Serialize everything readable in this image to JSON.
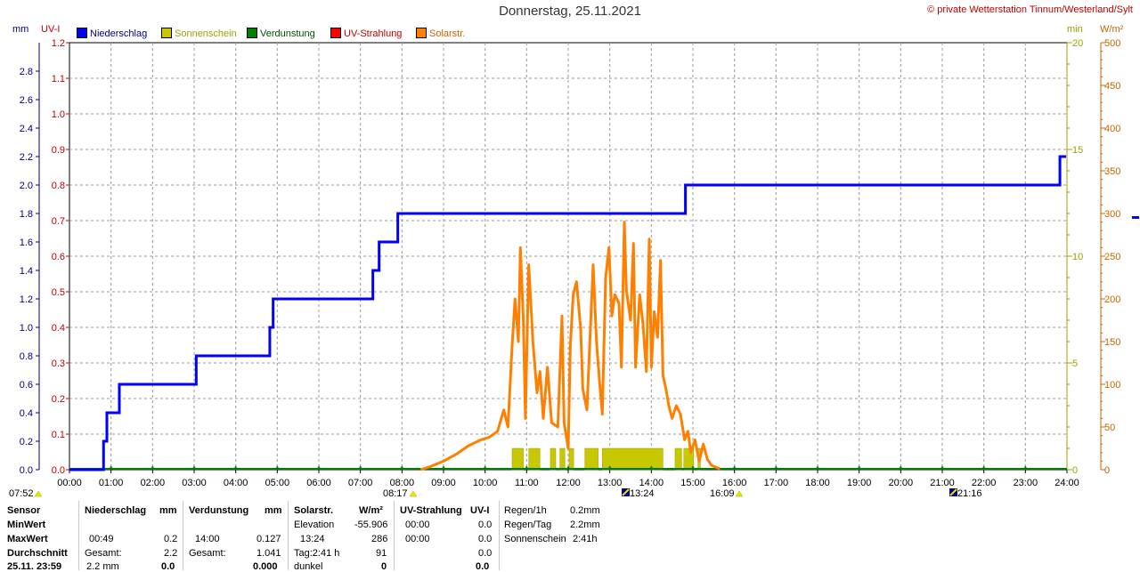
{
  "header": {
    "title": "Donnerstag, 25.11.2021",
    "copyright": "© private Wetterstation Tinnum/Westerland/Sylt"
  },
  "units": {
    "mm": "mm",
    "uvi": "UV-I",
    "min": "min",
    "wm2": "W/m²"
  },
  "colors": {
    "precip": "#0000ff",
    "sun": "#c8c800",
    "evap": "#008000",
    "uv": "#ff0000",
    "solar": "#ff8000",
    "axis_left1": "#000080",
    "axis_left2": "#c00000",
    "axis_min": "#a0a000",
    "axis_wm2": "#c86400"
  },
  "legend": [
    {
      "label": "Niederschlag",
      "color": "#0000ff",
      "text_color": "#000080"
    },
    {
      "label": "Sonnenschein",
      "color": "#c8c800",
      "text_color": "#a0a000"
    },
    {
      "label": "Verdunstung",
      "color": "#008000",
      "text_color": "#005000"
    },
    {
      "label": "UV-Strahlung",
      "color": "#ff0000",
      "text_color": "#c00000"
    },
    {
      "label": "Solarstr.",
      "color": "#ff8000",
      "text_color": "#c86400"
    }
  ],
  "chart_data": {
    "type": "line",
    "title": "Donnerstag, 25.11.2021",
    "x_ticks": [
      "00:00",
      "01:00",
      "02:00",
      "03:00",
      "04:00",
      "05:00",
      "06:00",
      "07:00",
      "08:00",
      "09:00",
      "10:00",
      "11:00",
      "12:00",
      "13:00",
      "14:00",
      "15:00",
      "16:00",
      "17:00",
      "18:00",
      "19:00",
      "20:00",
      "21:00",
      "22:00",
      "23:00",
      "24:00"
    ],
    "grid": true,
    "axes": {
      "mm": {
        "min": 0,
        "max": 3.0,
        "ticks": [
          "0.0",
          "0.2",
          "0.4",
          "0.6",
          "0.8",
          "1.0",
          "1.2",
          "1.4",
          "1.6",
          "1.8",
          "2.0",
          "2.2",
          "2.4",
          "2.6",
          "2.8"
        ]
      },
      "uvi": {
        "min": 0,
        "max": 1.2,
        "ticks": [
          "0.0",
          "0.1",
          "0.2",
          "0.3",
          "0.4",
          "0.5",
          "0.6",
          "0.7",
          "0.8",
          "0.9",
          "1.0",
          "1.1",
          "1.2"
        ]
      },
      "min": {
        "min": 0,
        "max": 20,
        "ticks": [
          "0",
          "5",
          "10",
          "15",
          "20"
        ]
      },
      "wm2": {
        "min": 0,
        "max": 500,
        "ticks": [
          "0",
          "50",
          "100",
          "150",
          "200",
          "250",
          "300",
          "350",
          "400",
          "450",
          "500"
        ]
      }
    },
    "series": [
      {
        "name": "Niederschlag",
        "axis": "mm",
        "step": true,
        "points": [
          [
            0.0,
            0.0
          ],
          [
            0.78,
            0.0
          ],
          [
            0.82,
            0.2
          ],
          [
            0.9,
            0.4
          ],
          [
            1.2,
            0.6
          ],
          [
            3.05,
            0.8
          ],
          [
            4.82,
            1.0
          ],
          [
            4.9,
            1.2
          ],
          [
            7.3,
            1.4
          ],
          [
            7.45,
            1.6
          ],
          [
            7.9,
            1.8
          ],
          [
            14.82,
            2.0
          ],
          [
            23.83,
            2.2
          ],
          [
            23.98,
            2.2
          ]
        ]
      },
      {
        "name": "Solarstr.",
        "axis": "wm2",
        "points": [
          [
            8.45,
            0
          ],
          [
            8.7,
            4
          ],
          [
            9.0,
            10
          ],
          [
            9.3,
            18
          ],
          [
            9.6,
            28
          ],
          [
            9.9,
            35
          ],
          [
            10.1,
            38
          ],
          [
            10.3,
            45
          ],
          [
            10.45,
            70
          ],
          [
            10.55,
            50
          ],
          [
            10.65,
            145
          ],
          [
            10.72,
            200
          ],
          [
            10.8,
            150
          ],
          [
            10.85,
            260
          ],
          [
            10.92,
            175
          ],
          [
            10.97,
            60
          ],
          [
            11.05,
            240
          ],
          [
            11.15,
            150
          ],
          [
            11.25,
            90
          ],
          [
            11.32,
            115
          ],
          [
            11.4,
            60
          ],
          [
            11.5,
            120
          ],
          [
            11.6,
            55
          ],
          [
            11.75,
            50
          ],
          [
            11.85,
            180
          ],
          [
            11.9,
            55
          ],
          [
            12.0,
            25
          ],
          [
            12.05,
            145
          ],
          [
            12.12,
            205
          ],
          [
            12.2,
            220
          ],
          [
            12.3,
            165
          ],
          [
            12.35,
            95
          ],
          [
            12.45,
            70
          ],
          [
            12.6,
            240
          ],
          [
            12.68,
            150
          ],
          [
            12.75,
            105
          ],
          [
            12.82,
            65
          ],
          [
            12.9,
            225
          ],
          [
            12.98,
            260
          ],
          [
            13.05,
            180
          ],
          [
            13.12,
            205
          ],
          [
            13.22,
            195
          ],
          [
            13.28,
            120
          ],
          [
            13.35,
            290
          ],
          [
            13.4,
            210
          ],
          [
            13.5,
            175
          ],
          [
            13.57,
            265
          ],
          [
            13.62,
            120
          ],
          [
            13.72,
            205
          ],
          [
            13.8,
            170
          ],
          [
            13.88,
            115
          ],
          [
            13.95,
            270
          ],
          [
            14.0,
            120
          ],
          [
            14.07,
            185
          ],
          [
            14.15,
            155
          ],
          [
            14.22,
            245
          ],
          [
            14.28,
            110
          ],
          [
            14.35,
            95
          ],
          [
            14.42,
            75
          ],
          [
            14.5,
            60
          ],
          [
            14.6,
            75
          ],
          [
            14.7,
            65
          ],
          [
            14.8,
            35
          ],
          [
            14.88,
            45
          ],
          [
            14.95,
            20
          ],
          [
            15.05,
            35
          ],
          [
            15.15,
            10
          ],
          [
            15.25,
            30
          ],
          [
            15.35,
            12
          ],
          [
            15.45,
            5
          ],
          [
            15.55,
            3
          ],
          [
            15.65,
            1
          ]
        ]
      },
      {
        "name": "Sonnenschein",
        "axis": "min",
        "type": "bar",
        "segments": [
          [
            10.65,
            10.92,
            1.0
          ],
          [
            11.05,
            11.32,
            1.0
          ],
          [
            11.57,
            11.7,
            1.0
          ],
          [
            11.8,
            11.92,
            1.0
          ],
          [
            12.02,
            12.13,
            1.0
          ],
          [
            12.4,
            12.72,
            1.0
          ],
          [
            12.82,
            14.28,
            1.0
          ],
          [
            14.57,
            14.73,
            1.0
          ],
          [
            14.78,
            15.02,
            1.0
          ],
          [
            15.12,
            15.18,
            1.0
          ]
        ]
      },
      {
        "name": "Verdunstung",
        "axis": "mm",
        "type": "ticks",
        "x": [
          1,
          2,
          3,
          4,
          5,
          6,
          7,
          8,
          9,
          10,
          11,
          12,
          13,
          14,
          15,
          16,
          17,
          18,
          19,
          20,
          21,
          22,
          23
        ],
        "value": 0.03
      },
      {
        "name": "UV-Strahlung",
        "axis": "uvi",
        "type": "line",
        "points": [
          [
            0,
            0
          ],
          [
            24,
            0
          ]
        ]
      }
    ]
  },
  "time_markers": {
    "sunrise_time": "07:52",
    "sunrise2_time": "08:17",
    "solar_max_time": "13:24",
    "sunset_time": "16:09",
    "end_time": "21:16"
  },
  "table": {
    "rows": [
      "Sensor",
      "MinWert",
      "MaxWert",
      "Durchschnitt",
      "25.11. 23:59"
    ],
    "niederschlag": {
      "header": "Niederschlag",
      "unit": "mm",
      "max_time": "00:49",
      "max_val": "0.2",
      "gesamt_label": "Gesamt:",
      "gesamt_val": "2.2",
      "last_time": "2.2 mm",
      "last_val": "0.0"
    },
    "verdunstung": {
      "header": "Verdunstung",
      "unit": "mm",
      "max_time": "14:00",
      "max_val": "0.127",
      "gesamt_label": "Gesamt:",
      "gesamt_val": "1.041",
      "last_val": "0.000"
    },
    "solar": {
      "header": "Solarstr.",
      "unit": "W/m²",
      "elev_label": "Elevation",
      "elev_val": "-55.906",
      "max_time": "13:24",
      "max_val": "286",
      "tag_label": "Tag:2:41 h",
      "tag_val": "91",
      "dunkel_label": "dunkel",
      "dunkel_val": "0"
    },
    "uv": {
      "header": "UV-Strahlung",
      "unit": "UV-I",
      "min_time": "00:00",
      "min_val": "0.0",
      "max_time": "00:00",
      "max_val": "0.0",
      "avg_val": "0.0",
      "last_val": "0.0"
    },
    "summary": {
      "regen_h_label": "Regen/1h",
      "regen_h_val": "0.2mm",
      "regen_tag_label": "Regen/Tag",
      "regen_tag_val": "2.2mm",
      "sonne_label": "Sonnenschein",
      "sonne_val": "2:41h"
    }
  }
}
